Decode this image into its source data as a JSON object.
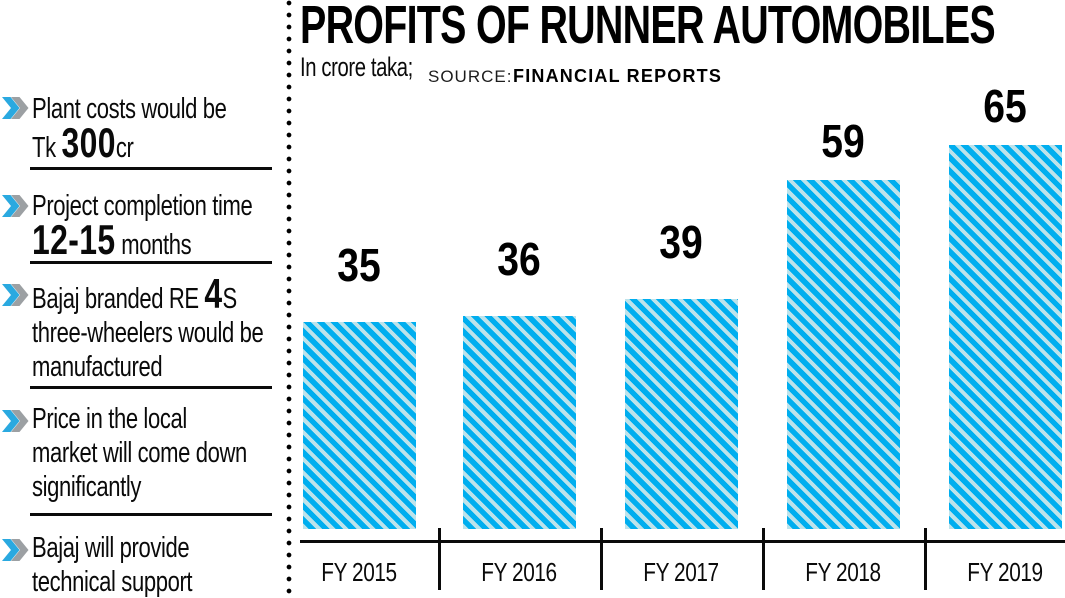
{
  "sidebar": {
    "items": [
      {
        "line1": "Plant costs would be",
        "line2_pre": "Tk ",
        "line2_big": "300",
        "line2_post": "cr"
      },
      {
        "line1": "Project completion time",
        "line2_big": "12-15",
        "line2_post": " months"
      },
      {
        "line1_pre": "Bajaj branded RE ",
        "line1_big": "4",
        "line1_post": "S",
        "line2": "three-wheelers would be",
        "line3": "manufactured"
      },
      {
        "line1": "Price in the local",
        "line2": "market will come down",
        "line3": "significantly"
      },
      {
        "line1": "Bajaj will provide",
        "line2": "technical support"
      }
    ]
  },
  "header": {
    "title": "PROFITS OF RUNNER AUTOMOBILES",
    "subtitle": "In crore taka;",
    "source_label": "SOURCE:",
    "source_value": "FINANCIAL REPORTS"
  },
  "chart_data": {
    "type": "bar",
    "title": "PROFITS OF RUNNER AUTOMOBILES",
    "subtitle": "In crore taka; SOURCE: FINANCIAL REPORTS",
    "categories": [
      "FY 2015",
      "FY 2016",
      "FY 2017",
      "FY 2018",
      "FY 2019"
    ],
    "values": [
      35,
      36,
      39,
      59,
      65
    ],
    "unit": "crore taka",
    "ylim": [
      0,
      65
    ],
    "grid": false,
    "legend": "none",
    "colors": {
      "bar_stripe_blue": "#00aeef",
      "bar_stripe_pale": "#bde3eb",
      "bullet_blue": "#2aa9e0",
      "bullet_gray": "#9ca0a3",
      "text": "#0a0a0a"
    }
  }
}
